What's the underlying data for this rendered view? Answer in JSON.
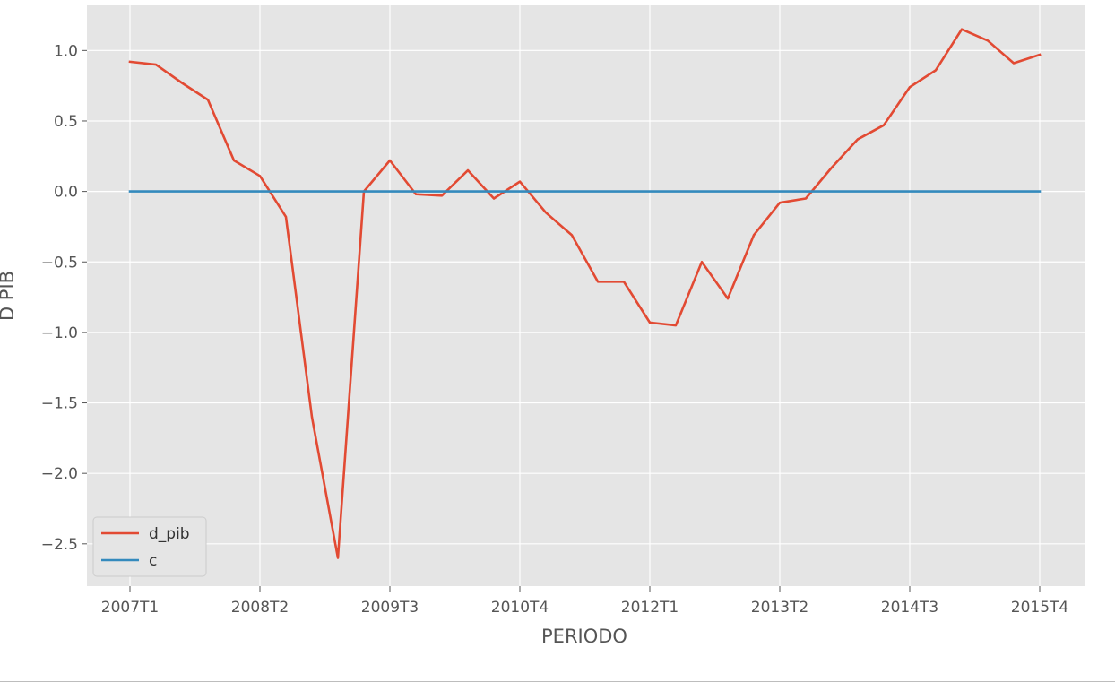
{
  "chart_data": {
    "type": "line",
    "title": "",
    "xlabel": "PERIODO",
    "ylabel": "D PIB",
    "x_tick_labels": [
      "2007T1",
      "2008T2",
      "2009T3",
      "2010T4",
      "2012T1",
      "2013T2",
      "2014T3",
      "2015T4"
    ],
    "y_ticks": [
      1.0,
      0.5,
      0.0,
      -0.5,
      -1.0,
      -1.5,
      -2.0,
      -2.5
    ],
    "y_tick_labels": [
      "1.0",
      "0.5",
      "0.0",
      "−0.5",
      "−1.0",
      "−1.5",
      "−2.0",
      "−2.5"
    ],
    "ylim": [
      -2.8,
      1.32
    ],
    "grid": true,
    "legend_position": "lower-left",
    "series": [
      {
        "name": "d_pib",
        "color": "#E24A33",
        "values": [
          0.92,
          0.9,
          0.77,
          0.65,
          0.22,
          0.11,
          -0.18,
          -1.6,
          -2.6,
          0.0,
          0.22,
          -0.02,
          -0.03,
          0.15,
          -0.05,
          0.07,
          -0.15,
          -0.31,
          -0.64,
          -0.64,
          -0.93,
          -0.95,
          -0.5,
          -0.76,
          -0.31,
          -0.08,
          -0.05,
          0.17,
          0.37,
          0.47,
          0.74,
          0.86,
          1.15,
          1.07,
          0.91,
          0.97
        ]
      },
      {
        "name": "c",
        "color": "#348ABD",
        "values": [
          0,
          0,
          0,
          0,
          0,
          0,
          0,
          0,
          0,
          0,
          0,
          0,
          0,
          0,
          0,
          0,
          0,
          0,
          0,
          0,
          0,
          0,
          0,
          0,
          0,
          0,
          0,
          0,
          0,
          0,
          0,
          0,
          0,
          0,
          0,
          0
        ]
      }
    ]
  }
}
